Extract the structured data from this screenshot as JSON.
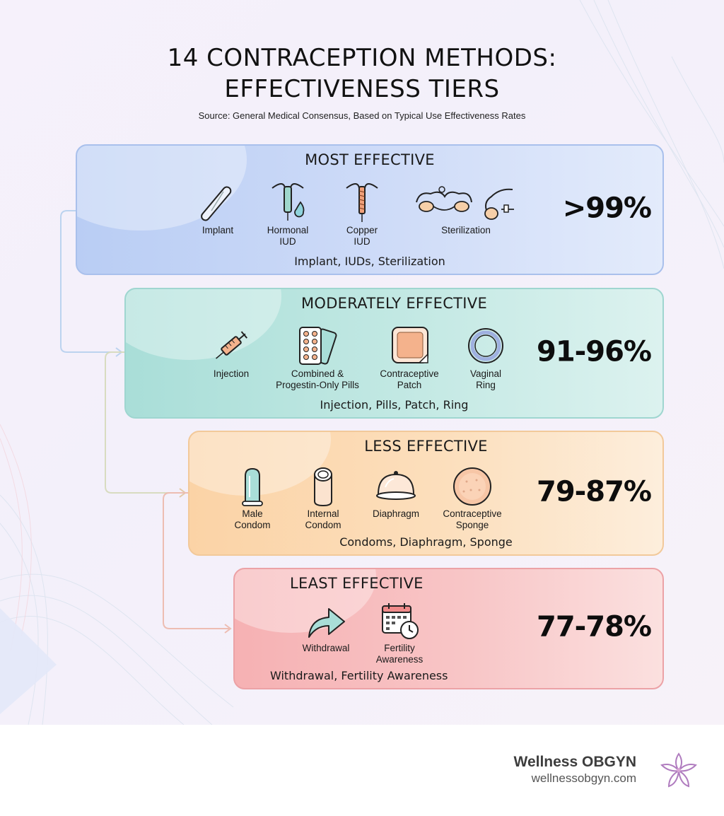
{
  "title_line1": "14 CONTRACEPTION METHODS:",
  "title_line2": "EFFECTIVENESS TIERS",
  "source": "Source: General Medical Consensus, Based on Typical Use Effectiveness Rates",
  "tiers": [
    {
      "heading": "MOST EFFECTIVE",
      "rate": ">99%",
      "summary": "Implant, IUDs, Sterilization",
      "methods": [
        {
          "label": "Implant",
          "icon": "implant-icon"
        },
        {
          "label": "Hormonal\nIUD",
          "icon": "hormonal-iud-icon"
        },
        {
          "label": "Copper\nIUD",
          "icon": "copper-iud-icon"
        },
        {
          "label": "Sterilization",
          "icon": "sterilization-icon"
        }
      ]
    },
    {
      "heading": "MODERATELY EFFECTIVE",
      "rate": "91-96%",
      "summary": "Injection, Pills, Patch, Ring",
      "methods": [
        {
          "label": "Injection",
          "icon": "syringe-icon"
        },
        {
          "label": "Combined &\nProgestin-Only Pills",
          "icon": "pill-pack-icon"
        },
        {
          "label": "Contraceptive\nPatch",
          "icon": "patch-icon"
        },
        {
          "label": "Vaginal\nRing",
          "icon": "ring-icon"
        }
      ]
    },
    {
      "heading": "LESS EFFECTIVE",
      "rate": "79-87%",
      "summary": "Condoms, Diaphragm, Sponge",
      "methods": [
        {
          "label": "Male\nCondom",
          "icon": "male-condom-icon"
        },
        {
          "label": "Internal\nCondom",
          "icon": "internal-condom-icon"
        },
        {
          "label": "Diaphragm",
          "icon": "diaphragm-icon"
        },
        {
          "label": "Contraceptive\nSponge",
          "icon": "sponge-icon"
        }
      ]
    },
    {
      "heading": "LEAST EFFECTIVE",
      "rate": "77-78%",
      "summary": "Withdrawal, Fertility Awareness",
      "methods": [
        {
          "label": "Withdrawal",
          "icon": "withdrawal-arrow-icon"
        },
        {
          "label": "Fertility\nAwareness",
          "icon": "calendar-clock-icon"
        }
      ]
    }
  ],
  "brand": {
    "name": "Wellness OBGYN",
    "url": "wellnessobgyn.com",
    "logo_icon": "lotus-flower-icon"
  },
  "colors": {
    "most": "#b9cdf4",
    "moderate": "#a9ded8",
    "less": "#fbd3a6",
    "least": "#f6b1b3"
  }
}
